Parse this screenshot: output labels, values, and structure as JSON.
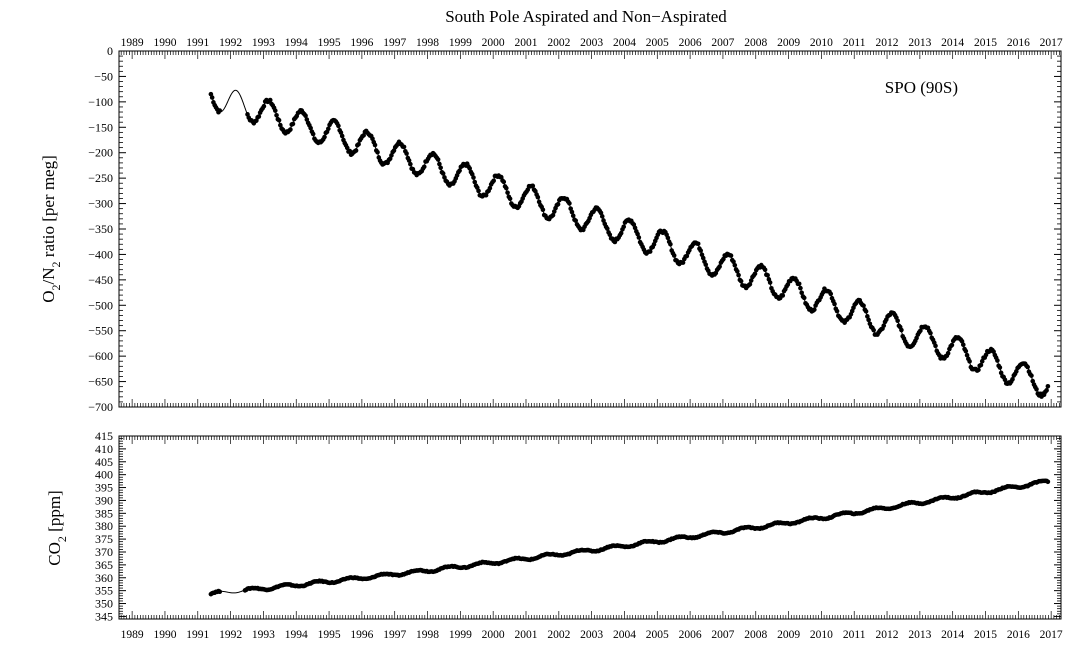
{
  "chart_data": {
    "type": "scatter",
    "title": "South Pole Aspirated and Non−Aspirated",
    "colors": {
      "points": "#000000",
      "fit_line": "#000000",
      "background": "#ffffff"
    },
    "x_axis": {
      "ticks": [
        "1989",
        "1990",
        "1991",
        "1992",
        "1993",
        "1994",
        "1995",
        "1996",
        "1997",
        "1998",
        "1999",
        "2000",
        "2001",
        "2002",
        "2003",
        "2004",
        "2005",
        "2006",
        "2007",
        "2008",
        "2009",
        "2010",
        "2011",
        "2012",
        "2013",
        "2014",
        "2015",
        "2016",
        "2017"
      ],
      "range": [
        1988.6,
        2017.3
      ],
      "labels_top_and_bottom": true,
      "minor_ticks_per_year": 12
    },
    "panels": [
      {
        "id": "o2n2",
        "ylabel_main": "O",
        "ylabel_sub1": "2",
        "ylabel_mid": "/N",
        "ylabel_sub2": "2",
        "ylabel_tail": " ratio [per meg]",
        "annotation": "SPO (90S)",
        "ylim": [
          -700,
          0
        ],
        "yticks": [
          "0",
          "−50",
          "−100",
          "−150",
          "−200",
          "−250",
          "−300",
          "−350",
          "−400",
          "−450",
          "−500",
          "−550",
          "−600",
          "−650",
          "−700"
        ],
        "trend": {
          "start_year": 1991.4,
          "start_value": -88,
          "slope_per_year": -20,
          "curvature": -0.09
        },
        "seasonal_amplitude": 26,
        "seasonal_peak_fraction": 0.17,
        "data_start": 1991.4,
        "data_end": 2016.9,
        "early_gap": [
          1991.7,
          1992.5
        ],
        "fit_curve": true
      },
      {
        "id": "co2",
        "ylabel_main": "CO",
        "ylabel_sub1": "2",
        "ylabel_tail": " [ppm]",
        "ylim": [
          344,
          415
        ],
        "yticks": [
          "345",
          "350",
          "355",
          "360",
          "365",
          "370",
          "375",
          "380",
          "385",
          "390",
          "395",
          "400",
          "405",
          "410",
          "415"
        ],
        "trend": {
          "start_year": 1991.4,
          "start_value": 353.8,
          "slope_per_year": 1.25,
          "curvature": 0.018
        },
        "seasonal_amplitude": 0.6,
        "seasonal_peak_fraction": 0.65,
        "data_start": 1991.4,
        "data_end": 2016.9,
        "early_gap": [
          1991.7,
          1992.4
        ],
        "fit_curve": true
      }
    ]
  }
}
